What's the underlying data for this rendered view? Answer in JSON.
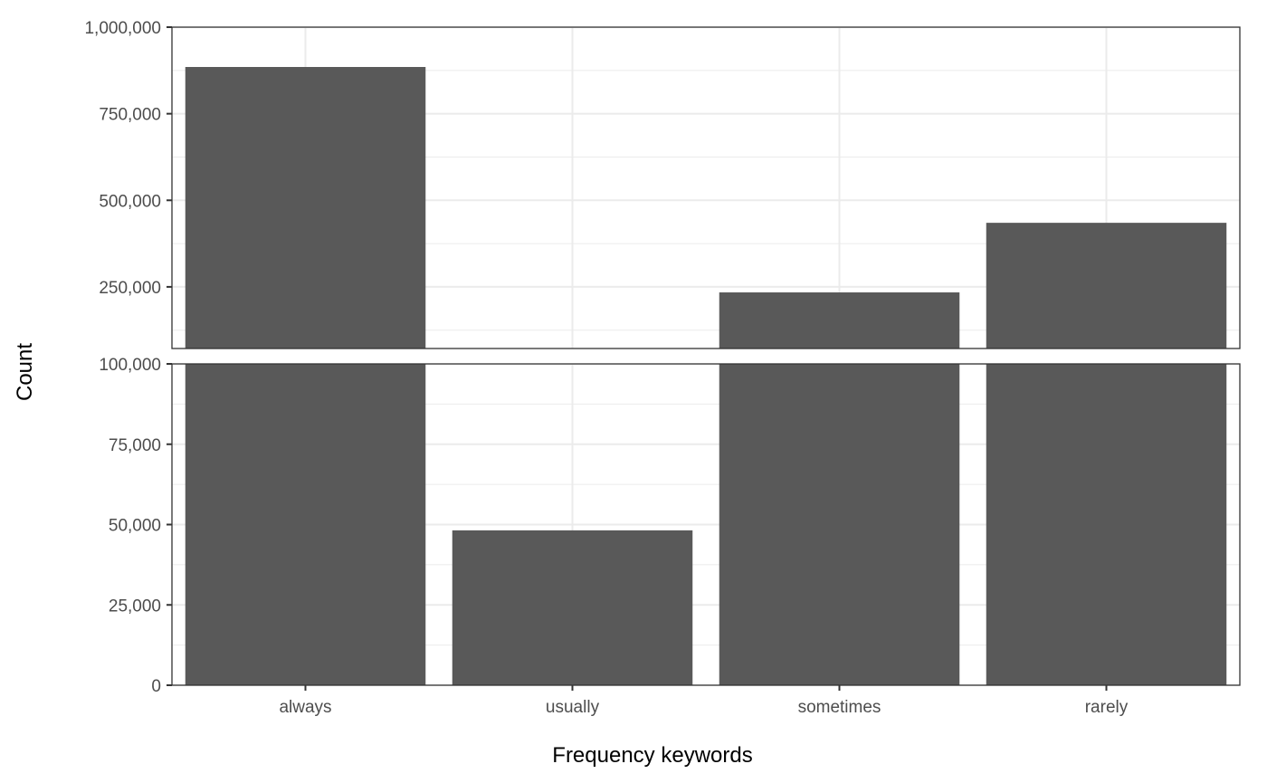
{
  "chart_data": {
    "type": "bar",
    "categories": [
      "always",
      "usually",
      "sometimes",
      "rarely"
    ],
    "values": [
      885000,
      48200,
      234000,
      435000
    ],
    "xlabel": "Frequency keywords",
    "ylabel": "Count",
    "bar_color": "#595959",
    "grid": true,
    "broken_axis": true,
    "panels": [
      {
        "name": "upper",
        "ylim": [
          72000,
          1000000
        ],
        "ticks": [
          250000,
          500000,
          750000,
          1000000
        ],
        "tick_labels": [
          "250,000",
          "500,000",
          "750,000",
          "1,000,000"
        ]
      },
      {
        "name": "lower",
        "ylim": [
          0,
          100000
        ],
        "ticks": [
          0,
          25000,
          50000,
          75000,
          100000
        ],
        "tick_labels": [
          "0",
          "25,000",
          "50,000",
          "75,000",
          "100,000"
        ]
      }
    ]
  }
}
